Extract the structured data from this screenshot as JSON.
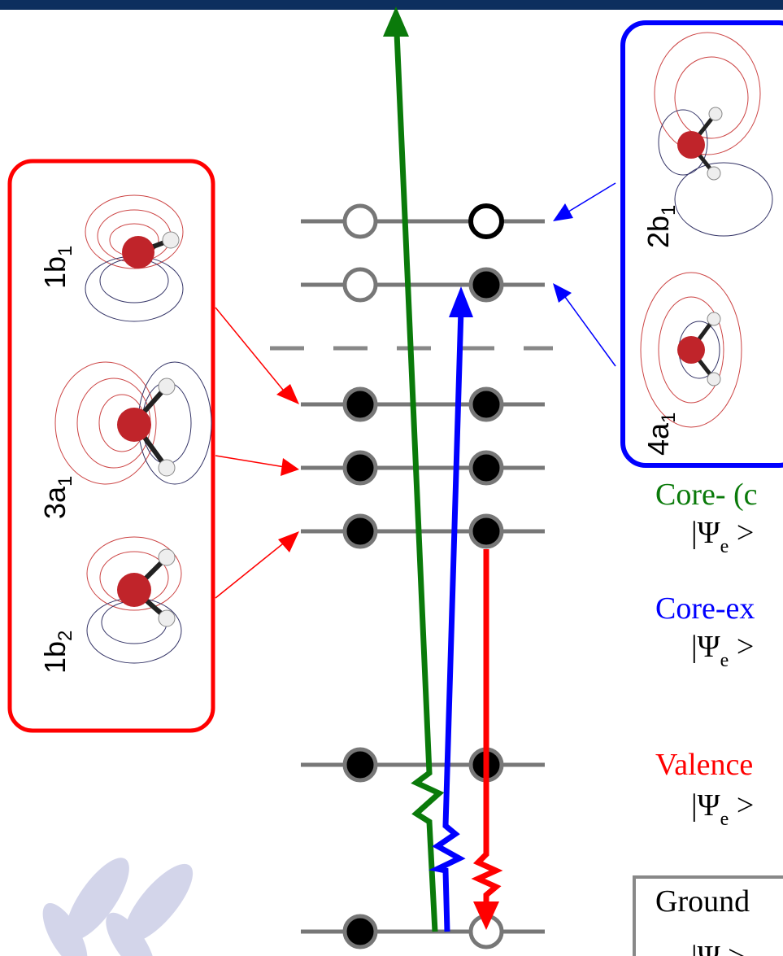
{
  "orbitals_left": [
    {
      "label": "1b",
      "sub": "1"
    },
    {
      "label": "3a",
      "sub": "1"
    },
    {
      "label": "1b",
      "sub": "2"
    }
  ],
  "orbitals_right": [
    {
      "label": "2b",
      "sub": "1"
    },
    {
      "label": "4a",
      "sub": "1"
    }
  ],
  "transitions": [
    {
      "name": "Core- (c",
      "state": "|Ψ",
      "sub": "e",
      "ket": " >"
    },
    {
      "name": "Core-ex",
      "state": "|Ψ",
      "sub": "e",
      "ket": " >"
    },
    {
      "name": "Valence",
      "state": "|Ψ",
      "sub": "e",
      "ket": " >"
    }
  ],
  "ground": {
    "name": "Ground",
    "state": "|Ψ",
    "ket": " >"
  }
}
